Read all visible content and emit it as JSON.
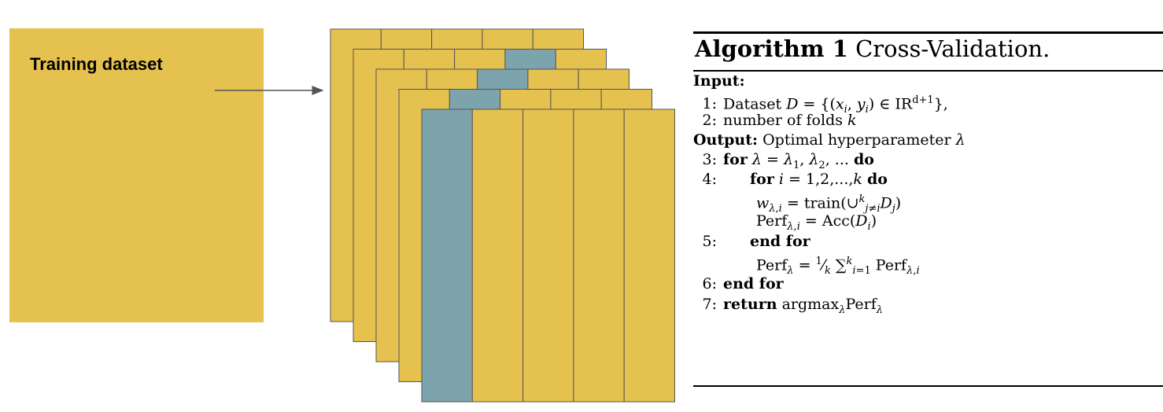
{
  "colors": {
    "yellow": "#e5c14f",
    "teal": "#7da3ad",
    "stroke": "#555555",
    "text": "#000000"
  },
  "dataset": {
    "label": "Training dataset"
  },
  "folds": {
    "num_layers": 5,
    "columns_per_layer": 5,
    "held_out_column_by_layer": [
      null,
      3,
      2,
      1,
      0
    ]
  },
  "algorithm": {
    "title_bold": "Algorithm 1",
    "title_rest": "Cross-Validation.",
    "input_kw": "Input:",
    "l1_num": "1:",
    "l1_text": "Dataset",
    "l2_num": "2:",
    "l2_text": "number of folds",
    "output_kw": "Output:",
    "output_text": "Optimal hyperparameter",
    "l3_num": "3:",
    "l4_num": "4:",
    "l5_num": "5:",
    "l6_num": "6:",
    "l7_num": "7:",
    "kw_for": "for",
    "kw_do": "do",
    "kw_end_for": "end for",
    "kw_return": "return",
    "var_D": "D",
    "var_k": "k",
    "var_lambda": "λ",
    "var_i": "i",
    "train_fn": "train",
    "acc_fn": "Acc",
    "perf": "Perf",
    "argmax": "argmax",
    "inner_range": "1,2,...,",
    "reals": "IR",
    "dim": "d+1"
  }
}
